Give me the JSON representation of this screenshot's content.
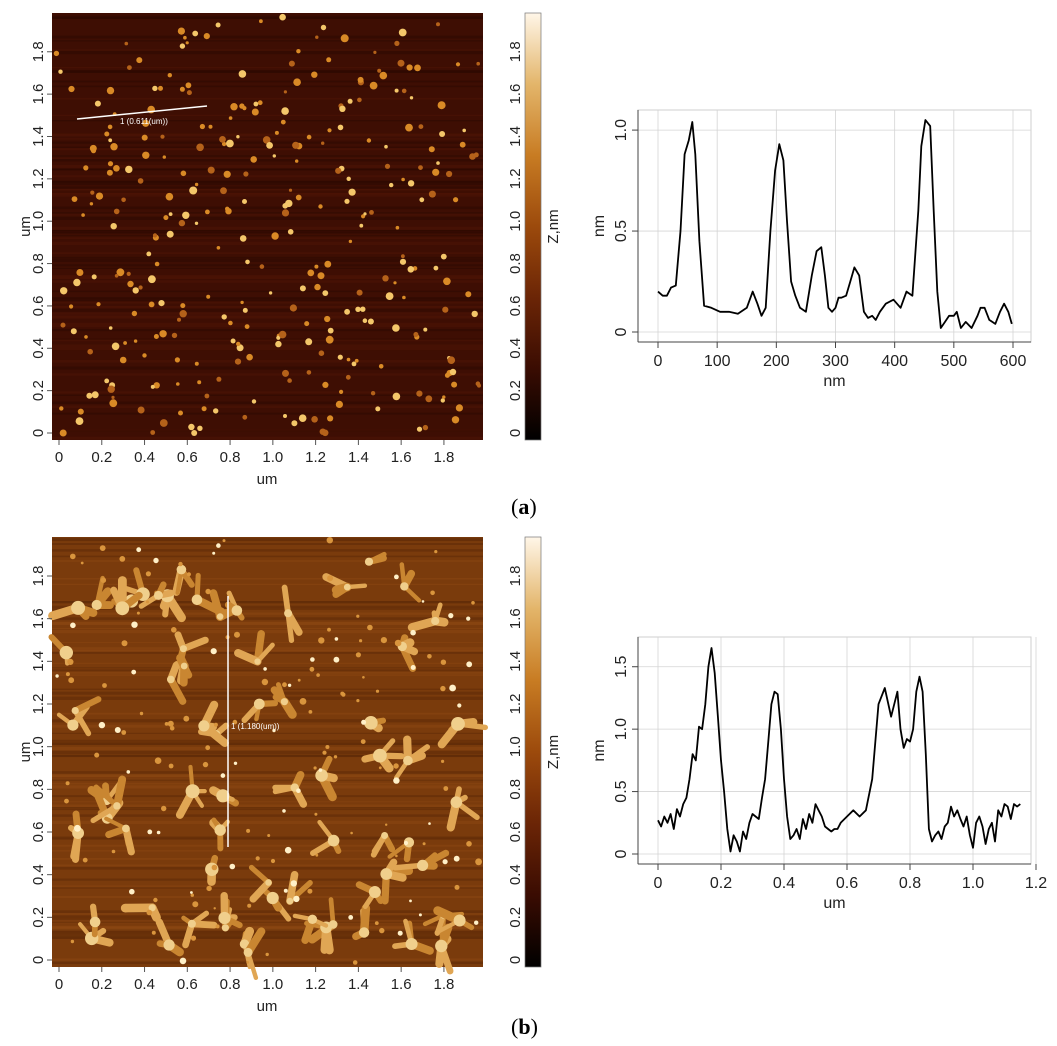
{
  "panels": [
    {
      "caption_open": "(",
      "caption_letter": "a",
      "caption_close": ")",
      "afm_image": {
        "xlabel": "um",
        "ylabel": "um",
        "ticks": [
          "0",
          "0.2",
          "0.4",
          "0.6",
          "0.8",
          "1.0",
          "1.2",
          "1.4",
          "1.6",
          "1.8"
        ],
        "line_label": "1 (0.611(um))",
        "description": "sparse small bright particles"
      },
      "colorbar": {
        "label": "Z,nm",
        "ticks": [
          "0",
          "0.2",
          "0.4",
          "0.6",
          "0.8",
          "1.0",
          "1.2",
          "1.4",
          "1.6",
          "1.8"
        ],
        "colors": [
          "#000000",
          "#3a0c02",
          "#6b2506",
          "#9c4a0c",
          "#c87c23",
          "#e3b56a",
          "#fff6e8"
        ]
      },
      "profile_chart": {
        "type": "line",
        "xlabel": "nm",
        "ylabel": "nm",
        "xlim": [
          0,
          600
        ],
        "ylim": [
          0,
          1.05
        ],
        "xticks": [
          "0",
          "100",
          "200",
          "300",
          "400",
          "500",
          "600"
        ],
        "xtick_values": [
          0,
          100,
          200,
          300,
          400,
          500,
          600
        ],
        "yticks": [
          "0",
          "0.5",
          "1.0"
        ],
        "ytick_values": [
          0,
          0.5,
          1.0
        ],
        "x": [
          0,
          8,
          15,
          22,
          30,
          38,
          45,
          52,
          58,
          63,
          70,
          78,
          90,
          105,
          120,
          135,
          150,
          160,
          168,
          175,
          182,
          190,
          198,
          205,
          212,
          218,
          225,
          232,
          240,
          250,
          260,
          268,
          276,
          282,
          288,
          294,
          300,
          305,
          310,
          318,
          325,
          332,
          340,
          348,
          355,
          362,
          368,
          375,
          385,
          398,
          410,
          420,
          430,
          440,
          445,
          452,
          460,
          466,
          472,
          478,
          485,
          492,
          500,
          505,
          512,
          520,
          530,
          540,
          545,
          552,
          560,
          570,
          578,
          585,
          592,
          598
        ],
        "y": [
          0.2,
          0.18,
          0.18,
          0.22,
          0.23,
          0.5,
          0.88,
          0.95,
          1.04,
          0.88,
          0.45,
          0.13,
          0.12,
          0.1,
          0.1,
          0.09,
          0.12,
          0.2,
          0.14,
          0.08,
          0.12,
          0.5,
          0.8,
          0.93,
          0.85,
          0.55,
          0.25,
          0.18,
          0.12,
          0.1,
          0.28,
          0.4,
          0.42,
          0.28,
          0.12,
          0.1,
          0.12,
          0.17,
          0.17,
          0.18,
          0.25,
          0.32,
          0.28,
          0.1,
          0.07,
          0.08,
          0.06,
          0.1,
          0.14,
          0.16,
          0.12,
          0.2,
          0.18,
          0.6,
          0.92,
          1.05,
          1.02,
          0.6,
          0.2,
          0.02,
          0.05,
          0.08,
          0.08,
          0.1,
          0.02,
          0.05,
          0.02,
          0.08,
          0.12,
          0.12,
          0.06,
          0.04,
          0.1,
          0.14,
          0.1,
          0.04
        ],
        "grid": true
      }
    },
    {
      "caption_open": "(",
      "caption_letter": "b",
      "caption_close": ")",
      "afm_image": {
        "xlabel": "um",
        "ylabel": "um",
        "ticks": [
          "0",
          "0.2",
          "0.4",
          "0.6",
          "0.8",
          "1.0",
          "1.2",
          "1.4",
          "1.6",
          "1.8"
        ],
        "line_label": "1 (1.180(um))",
        "description": "dense branched bright aggregates"
      },
      "colorbar": {
        "label": "Z,nm",
        "ticks": [
          "0",
          "0.2",
          "0.4",
          "0.6",
          "0.8",
          "1.0",
          "1.2",
          "1.4",
          "1.6",
          "1.8"
        ],
        "colors": [
          "#000000",
          "#3a0c02",
          "#6b2506",
          "#9c4a0c",
          "#c87c23",
          "#e3b56a",
          "#fff6e8"
        ]
      },
      "profile_chart": {
        "type": "line",
        "xlabel": "um",
        "ylabel": "nm",
        "xlim": [
          0,
          1.2
        ],
        "ylim": [
          0,
          1.65
        ],
        "xticks": [
          "0",
          "0.2",
          "0.4",
          "0.6",
          "0.8",
          "1.0",
          "1.2"
        ],
        "xtick_values": [
          0,
          0.2,
          0.4,
          0.6,
          0.8,
          1.0,
          1.2
        ],
        "yticks": [
          "0",
          "0.5",
          "1.0",
          "1.5"
        ],
        "ytick_values": [
          0,
          0.5,
          1.0,
          1.5
        ],
        "x": [
          0,
          0.01,
          0.02,
          0.03,
          0.04,
          0.05,
          0.06,
          0.07,
          0.08,
          0.09,
          0.1,
          0.11,
          0.12,
          0.13,
          0.14,
          0.15,
          0.16,
          0.17,
          0.175,
          0.18,
          0.19,
          0.2,
          0.21,
          0.22,
          0.23,
          0.24,
          0.25,
          0.26,
          0.27,
          0.28,
          0.29,
          0.3,
          0.31,
          0.32,
          0.33,
          0.34,
          0.35,
          0.36,
          0.37,
          0.38,
          0.39,
          0.4,
          0.41,
          0.42,
          0.43,
          0.44,
          0.45,
          0.46,
          0.47,
          0.48,
          0.49,
          0.5,
          0.51,
          0.52,
          0.53,
          0.54,
          0.55,
          0.56,
          0.57,
          0.58,
          0.6,
          0.62,
          0.64,
          0.66,
          0.68,
          0.7,
          0.72,
          0.74,
          0.76,
          0.77,
          0.78,
          0.79,
          0.8,
          0.81,
          0.82,
          0.83,
          0.84,
          0.85,
          0.86,
          0.87,
          0.88,
          0.89,
          0.9,
          0.91,
          0.92,
          0.93,
          0.94,
          0.95,
          0.96,
          0.97,
          0.98,
          0.99,
          1.0,
          1.01,
          1.02,
          1.03,
          1.04,
          1.05,
          1.06,
          1.07,
          1.08,
          1.09,
          1.1,
          1.11,
          1.12,
          1.13,
          1.14,
          1.15
        ],
        "y": [
          0.27,
          0.22,
          0.3,
          0.25,
          0.32,
          0.2,
          0.36,
          0.3,
          0.4,
          0.45,
          0.6,
          0.8,
          0.75,
          1.02,
          1.0,
          1.2,
          1.5,
          1.65,
          1.55,
          1.45,
          1.1,
          0.75,
          0.5,
          0.2,
          0.02,
          0.15,
          0.1,
          0.02,
          0.18,
          0.12,
          0.25,
          0.32,
          0.3,
          0.28,
          0.45,
          0.6,
          0.9,
          1.2,
          1.3,
          1.28,
          1.0,
          0.6,
          0.3,
          0.12,
          0.15,
          0.2,
          0.12,
          0.28,
          0.2,
          0.32,
          0.25,
          0.4,
          0.35,
          0.3,
          0.22,
          0.2,
          0.18,
          0.2,
          0.2,
          0.25,
          0.3,
          0.35,
          0.3,
          0.35,
          0.6,
          1.2,
          1.33,
          1.1,
          1.3,
          1.0,
          0.85,
          0.92,
          0.9,
          1.0,
          1.3,
          1.42,
          1.3,
          0.8,
          0.2,
          0.1,
          0.15,
          0.18,
          0.12,
          0.22,
          0.25,
          0.38,
          0.3,
          0.35,
          0.28,
          0.22,
          0.3,
          0.15,
          0.05,
          0.25,
          0.3,
          0.22,
          0.08,
          0.2,
          0.25,
          0.1,
          0.35,
          0.3,
          0.4,
          0.38,
          0.28,
          0.4,
          0.38,
          0.4
        ],
        "grid": true
      }
    }
  ]
}
